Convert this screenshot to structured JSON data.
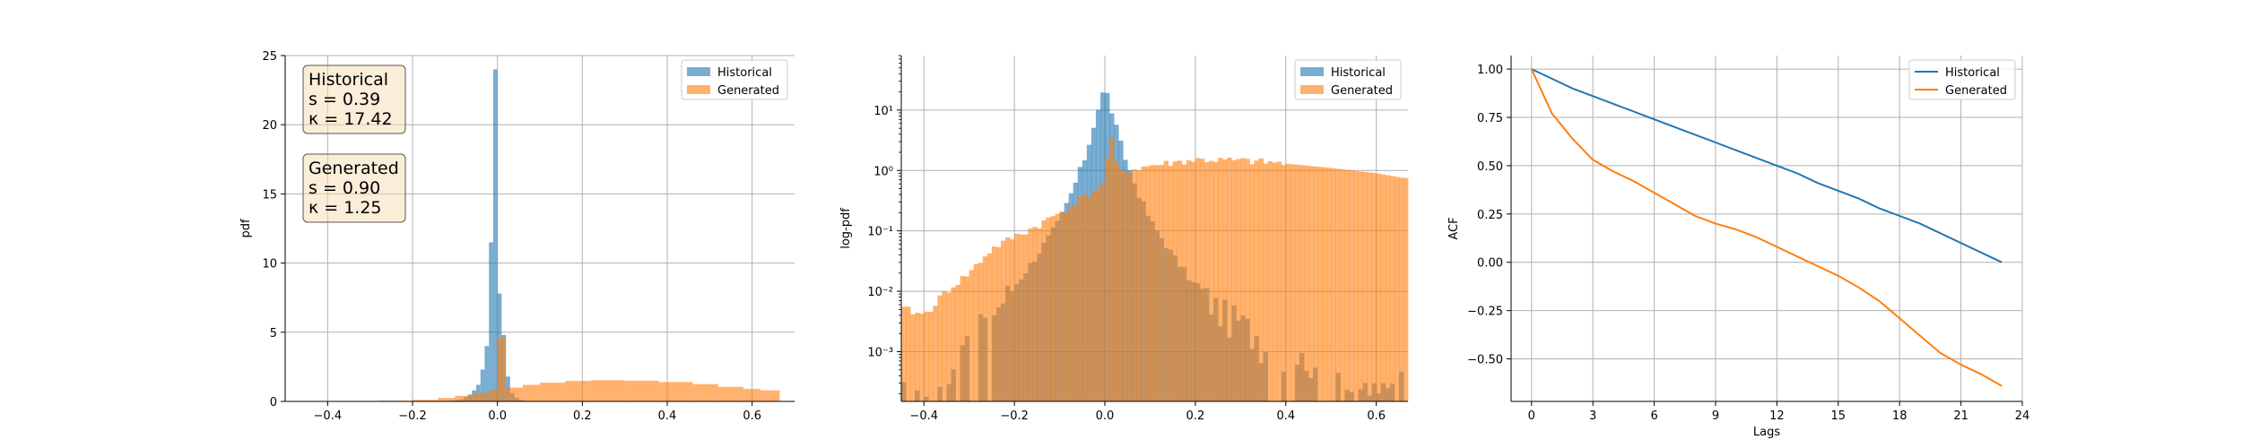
{
  "colors": {
    "historical": "#1f77b4",
    "generated": "#ff7f0e",
    "stat_box_fill": "#f5deb3",
    "grid": "#b0b0b0"
  },
  "chart_data": [
    {
      "type": "bar",
      "kind": "histogram",
      "title": "",
      "xlabel": "",
      "ylabel": "pdf",
      "xlim": [
        -0.5,
        0.7
      ],
      "ylim": [
        0,
        25
      ],
      "xticks": [
        "−0.4",
        "−0.2",
        "0.0",
        "0.2",
        "0.4",
        "0.6"
      ],
      "yticks": [
        "0",
        "5",
        "10",
        "15",
        "20",
        "25"
      ],
      "grid": true,
      "legend": {
        "position": "top-right",
        "entries": [
          "Historical",
          "Generated"
        ]
      },
      "annotations": [
        {
          "lines": [
            "Historical",
            "s = 0.39",
            "κ = 17.42"
          ]
        },
        {
          "lines": [
            "Generated",
            "s = 0.90",
            "κ = 1.25"
          ]
        }
      ],
      "series": [
        {
          "name": "Historical",
          "bin_edges": [
            -0.12,
            -0.11,
            -0.1,
            -0.09,
            -0.08,
            -0.07,
            -0.06,
            -0.05,
            -0.04,
            -0.03,
            -0.02,
            -0.01,
            0.0,
            0.01,
            0.02,
            0.03,
            0.04,
            0.05,
            0.06,
            0.07,
            0.08
          ],
          "values": [
            0.02,
            0.05,
            0.1,
            0.15,
            0.3,
            0.5,
            0.8,
            1.2,
            2.3,
            4.0,
            11.5,
            24.0,
            7.8,
            4.8,
            1.8,
            0.6,
            0.25,
            0.12,
            0.05,
            0.02
          ]
        },
        {
          "name": "Generated",
          "bin_edges": [
            -0.28,
            -0.2,
            -0.14,
            -0.1,
            -0.06,
            -0.02,
            0.0,
            0.02,
            0.06,
            0.1,
            0.16,
            0.22,
            0.3,
            0.38,
            0.46,
            0.52,
            0.58,
            0.62,
            0.665
          ],
          "values": [
            0.05,
            0.12,
            0.25,
            0.4,
            0.6,
            0.85,
            4.6,
            1.0,
            1.2,
            1.35,
            1.48,
            1.53,
            1.5,
            1.4,
            1.25,
            1.05,
            0.9,
            0.8
          ]
        }
      ]
    },
    {
      "type": "bar",
      "kind": "histogram",
      "title": "",
      "xlabel": "",
      "ylabel": "log-pdf",
      "yscale": "log",
      "xlim": [
        -0.45,
        0.67
      ],
      "ylim": [
        0.00015,
        80
      ],
      "xticks": [
        "−0.4",
        "−0.2",
        "0.0",
        "0.2",
        "0.4",
        "0.6"
      ],
      "yticks": [
        "10⁻³",
        "10⁻²",
        "10⁻¹",
        "10⁰",
        "10¹"
      ],
      "grid": true,
      "legend": {
        "position": "top-right",
        "entries": [
          "Historical",
          "Generated"
        ]
      },
      "series": [
        {
          "name": "Historical",
          "anchor_x": [
            -0.44,
            -0.4,
            -0.35,
            -0.3,
            -0.25,
            -0.2,
            -0.15,
            -0.1,
            -0.07,
            -0.04,
            -0.02,
            0.0,
            0.02,
            0.04,
            0.07,
            0.1,
            0.15,
            0.2,
            0.25,
            0.3,
            0.35,
            0.4,
            0.45,
            0.5,
            0.55,
            0.6,
            0.66
          ],
          "anchor_y": [
            0.0002,
            0.0003,
            0.0006,
            0.0015,
            0.004,
            0.012,
            0.04,
            0.15,
            0.5,
            2.0,
            8.0,
            25.0,
            7.0,
            2.0,
            0.5,
            0.15,
            0.04,
            0.012,
            0.005,
            0.003,
            0.0015,
            0.0008,
            0.0005,
            0.0003,
            0.0002,
            0.0002,
            0.0003
          ]
        },
        {
          "name": "Generated",
          "anchor_x": [
            -0.44,
            -0.4,
            -0.35,
            -0.3,
            -0.25,
            -0.2,
            -0.15,
            -0.1,
            -0.05,
            0.0,
            0.01,
            0.03,
            0.05,
            0.1,
            0.2,
            0.3,
            0.4,
            0.5,
            0.6,
            0.66
          ],
          "anchor_y": [
            0.005,
            0.004,
            0.01,
            0.02,
            0.05,
            0.08,
            0.12,
            0.2,
            0.35,
            0.6,
            4.5,
            0.9,
            1.0,
            1.2,
            1.5,
            1.45,
            1.3,
            1.1,
            0.9,
            0.75
          ]
        }
      ]
    },
    {
      "type": "line",
      "title": "",
      "xlabel": "Lags",
      "ylabel": "ACF",
      "xlim": [
        -1,
        24
      ],
      "ylim": [
        -0.72,
        1.07
      ],
      "xticks": [
        "0",
        "3",
        "6",
        "9",
        "12",
        "15",
        "18",
        "21",
        "24"
      ],
      "yticks": [
        "−0.50",
        "−0.25",
        "0.00",
        "0.25",
        "0.50",
        "0.75",
        "1.00"
      ],
      "grid": true,
      "legend": {
        "position": "top-right",
        "entries": [
          "Historical",
          "Generated"
        ]
      },
      "x": [
        0,
        1,
        2,
        3,
        4,
        5,
        6,
        7,
        8,
        9,
        10,
        11,
        12,
        13,
        14,
        15,
        16,
        17,
        18,
        19,
        20,
        21,
        22,
        23
      ],
      "series": [
        {
          "name": "Historical",
          "values": [
            1.0,
            0.95,
            0.9,
            0.86,
            0.82,
            0.78,
            0.74,
            0.7,
            0.66,
            0.62,
            0.58,
            0.54,
            0.5,
            0.46,
            0.41,
            0.37,
            0.33,
            0.28,
            0.24,
            0.2,
            0.15,
            0.1,
            0.05,
            0.0
          ]
        },
        {
          "name": "Generated",
          "values": [
            1.0,
            0.77,
            0.64,
            0.53,
            0.47,
            0.42,
            0.36,
            0.3,
            0.24,
            0.2,
            0.17,
            0.13,
            0.08,
            0.03,
            -0.02,
            -0.07,
            -0.13,
            -0.2,
            -0.29,
            -0.38,
            -0.47,
            -0.53,
            -0.58,
            -0.64
          ]
        }
      ]
    }
  ]
}
